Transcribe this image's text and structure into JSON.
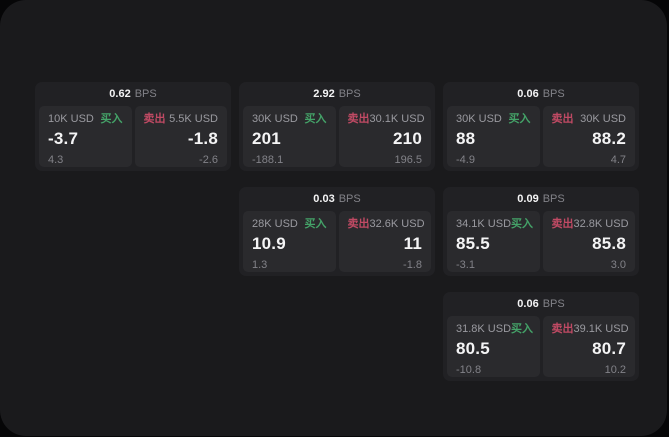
{
  "labels": {
    "bps_unit": "BPS",
    "buy_label": "买入",
    "sell_label": "卖出"
  },
  "colors": {
    "bg-outer": "#060607",
    "bg-panel": "#1a1a1c",
    "bg-card": "#212124",
    "bg-subpanel": "#2a2a2d",
    "text-primary": "#f4f4f5",
    "text-muted": "#9a9aa0",
    "text-faint": "#828288",
    "buy-green": "#44a268",
    "sell-red": "#c04a64"
  },
  "cards": [
    {
      "bps": "0.62",
      "buy": {
        "amount": "10K USD",
        "price": "-3.7",
        "delta": "4.3"
      },
      "sell": {
        "amount": "5.5K USD",
        "price": "-1.8",
        "delta": "-2.6"
      }
    },
    {
      "bps": "2.92",
      "buy": {
        "amount": "30K USD",
        "price": "201",
        "delta": "-188.1"
      },
      "sell": {
        "amount": "30.1K USD",
        "price": "210",
        "delta": "196.5"
      }
    },
    {
      "bps": "0.06",
      "buy": {
        "amount": "30K USD",
        "price": "88",
        "delta": "-4.9"
      },
      "sell": {
        "amount": "30K USD",
        "price": "88.2",
        "delta": "4.7"
      }
    },
    {
      "bps": "0.03",
      "buy": {
        "amount": "28K USD",
        "price": "10.9",
        "delta": "1.3"
      },
      "sell": {
        "amount": "32.6K USD",
        "price": "11",
        "delta": "-1.8"
      }
    },
    {
      "bps": "0.09",
      "buy": {
        "amount": "34.1K USD",
        "price": "85.5",
        "delta": "-3.1"
      },
      "sell": {
        "amount": "32.8K USD",
        "price": "85.8",
        "delta": "3.0"
      }
    },
    {
      "bps": "0.06",
      "buy": {
        "amount": "31.8K USD",
        "price": "80.5",
        "delta": "-10.8"
      },
      "sell": {
        "amount": "39.1K USD",
        "price": "80.7",
        "delta": "10.2"
      }
    }
  ]
}
